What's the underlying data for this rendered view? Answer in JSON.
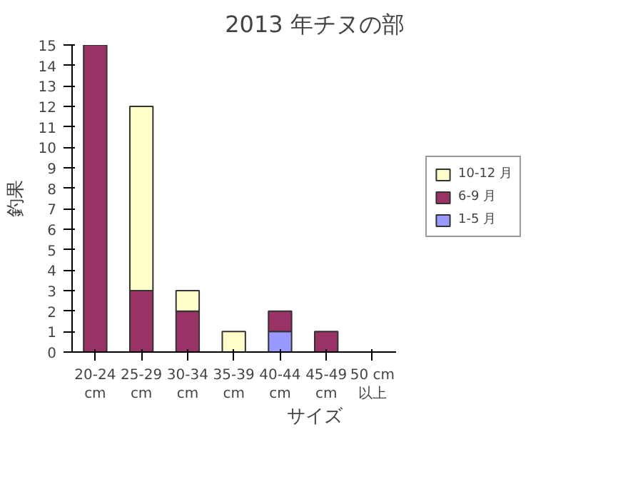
{
  "chart_data": {
    "type": "bar",
    "title": "2013 年チヌの部",
    "xlabel": "サイズ",
    "ylabel": "釣果",
    "categories": [
      "20-24 cm",
      "25-29 cm",
      "30-34 cm",
      "35-39 cm",
      "40-44 cm",
      "45-49 cm",
      "50 cm 以上"
    ],
    "stacked": true,
    "series": [
      {
        "name": "1-5 月",
        "color": "#9999ff",
        "values": [
          0,
          0,
          0,
          0,
          1,
          0,
          0
        ]
      },
      {
        "name": "6-9 月",
        "color": "#993366",
        "values": [
          15,
          3,
          2,
          0,
          1,
          1,
          0
        ]
      },
      {
        "name": "10-12 月",
        "color": "#ffffcc",
        "values": [
          0,
          9,
          1,
          1,
          0,
          0,
          0
        ]
      }
    ],
    "ylim": [
      0,
      15
    ],
    "yticks": [
      0,
      1,
      2,
      3,
      4,
      5,
      6,
      7,
      8,
      9,
      10,
      11,
      12,
      13,
      14,
      15
    ],
    "grid": false,
    "legend": "right"
  }
}
